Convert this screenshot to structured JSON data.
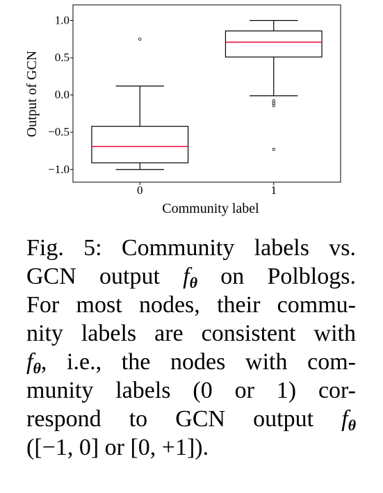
{
  "chart_data": {
    "type": "box",
    "categories": [
      "0",
      "1"
    ],
    "x_label": "Community label",
    "y_label": "Output of GCN",
    "ylim": [
      -1.17,
      1.21
    ],
    "yticks": [
      {
        "value": -1.0,
        "label": "−1.0"
      },
      {
        "value": -0.5,
        "label": "−0.5"
      },
      {
        "value": 0.0,
        "label": "0.0"
      },
      {
        "value": 0.5,
        "label": "0.5"
      },
      {
        "value": 1.0,
        "label": "1.0"
      }
    ],
    "box_color": "#000000",
    "median_color": "#e8003a",
    "boxes": [
      {
        "whislo": -1.0,
        "q1": -0.91,
        "med": -0.69,
        "q3": -0.42,
        "whishi": 0.12,
        "fliers": [
          0.75
        ]
      },
      {
        "whislo": -0.01,
        "q1": 0.51,
        "med": 0.71,
        "q3": 0.86,
        "whishi": 1.0,
        "fliers": [
          -0.08,
          -0.11,
          -0.14,
          -0.73
        ]
      }
    ]
  },
  "caption": {
    "lines": [
      [
        "Fig. 5: Community labels vs."
      ],
      [
        "GCN output ",
        {
          "italic": "f",
          "sub": "θ"
        },
        " on Polblogs."
      ],
      [
        "For most nodes, their commu-"
      ],
      [
        "nity labels are consistent with"
      ],
      [
        {
          "italic": "f",
          "sub": "θ"
        },
        ", i.e., the nodes with com-"
      ],
      [
        "munity labels (0 or 1) cor-"
      ],
      [
        "respond to GCN output ",
        {
          "italic": "f",
          "sub": "θ"
        }
      ],
      [
        "([−1, 0] or [0, +1])."
      ]
    ]
  }
}
